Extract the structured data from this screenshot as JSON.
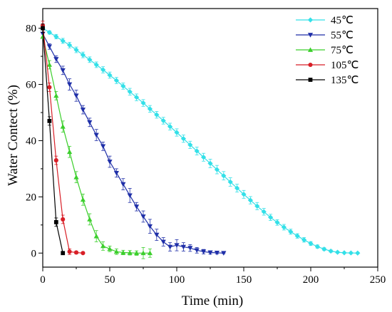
{
  "chart_data": {
    "type": "line",
    "xlabel": "Time (min)",
    "ylabel": "Water Contect (%)",
    "xlim": [
      0,
      250
    ],
    "ylim": [
      -5,
      87
    ],
    "xticks": [
      0,
      50,
      100,
      150,
      200,
      250
    ],
    "yticks": [
      0,
      20,
      40,
      60,
      80
    ],
    "grid": false,
    "legend_position": "top-right",
    "series": [
      {
        "name": "45℃",
        "color": "#33e0e8",
        "marker": "diamond",
        "x": [
          0,
          5,
          10,
          15,
          20,
          25,
          30,
          35,
          40,
          45,
          50,
          55,
          60,
          65,
          70,
          75,
          80,
          85,
          90,
          95,
          100,
          105,
          110,
          115,
          120,
          125,
          130,
          135,
          140,
          145,
          150,
          155,
          160,
          165,
          170,
          175,
          180,
          185,
          190,
          195,
          200,
          205,
          210,
          215,
          220,
          225,
          230,
          235
        ],
        "y": [
          80,
          78.5,
          77,
          75.5,
          74,
          72.3,
          70.5,
          68.8,
          67,
          65.2,
          63.3,
          61.4,
          59.4,
          57.4,
          55.4,
          53.4,
          51.3,
          49.2,
          47.1,
          45,
          42.9,
          40.7,
          38.5,
          36.3,
          34.1,
          31.9,
          29.7,
          27.5,
          25.3,
          23.1,
          20.9,
          18.8,
          16.7,
          14.7,
          12.7,
          10.9,
          9.2,
          7.6,
          6.1,
          4.7,
          3.4,
          2.3,
          1.4,
          0.7,
          0.3,
          0.1,
          0.05,
          0
        ],
        "err": [
          0,
          0.6,
          0.8,
          0.9,
          1,
          1,
          1,
          1,
          1,
          1.1,
          1.1,
          1.1,
          1.1,
          1.2,
          1.2,
          1.2,
          1.2,
          1.2,
          1.2,
          1.2,
          1.3,
          1.3,
          1.3,
          1.4,
          1.4,
          1.5,
          1.5,
          1.5,
          1.5,
          1.4,
          1.4,
          1.3,
          1.3,
          1.2,
          1.1,
          1,
          1,
          0.9,
          0.8,
          0.8,
          0.7,
          0.6,
          0.5,
          0.4,
          0.3,
          0.2,
          0.2,
          0.1
        ]
      },
      {
        "name": "55℃",
        "color": "#1f2fa8",
        "marker": "triangle-down",
        "x": [
          0,
          5,
          10,
          15,
          20,
          25,
          30,
          35,
          40,
          45,
          50,
          55,
          60,
          65,
          70,
          75,
          80,
          85,
          90,
          95,
          100,
          105,
          110,
          115,
          120,
          125,
          130,
          135
        ],
        "y": [
          78,
          73.5,
          69,
          65,
          60,
          56,
          51,
          46.5,
          42,
          38,
          32.5,
          28.5,
          24.5,
          20.5,
          16.5,
          13,
          9.5,
          6.5,
          4,
          2.2,
          2.8,
          2.2,
          1.8,
          1,
          0.5,
          0.2,
          0.1,
          0
        ],
        "err": [
          0,
          1,
          1.2,
          1.5,
          2,
          2,
          1.5,
          1.5,
          2,
          1.5,
          2,
          1.5,
          2,
          2.5,
          1.5,
          2,
          2.5,
          2,
          1.5,
          1.5,
          2,
          1.5,
          1.2,
          1,
          0.8,
          0.6,
          0.4,
          0.2
        ]
      },
      {
        "name": "75℃",
        "color": "#3ccf2c",
        "marker": "triangle-up",
        "x": [
          0,
          5,
          10,
          15,
          20,
          25,
          30,
          35,
          40,
          45,
          50,
          55,
          60,
          65,
          70,
          75,
          80
        ],
        "y": [
          77,
          67,
          56,
          45,
          36,
          27,
          19,
          12,
          6,
          2.5,
          1.5,
          0.5,
          0.2,
          0.1,
          0,
          0,
          0
        ],
        "err": [
          0,
          1.5,
          1.5,
          2,
          2,
          2,
          2,
          2,
          2,
          1.5,
          1,
          1,
          0.8,
          0.8,
          0.8,
          2,
          1.5
        ]
      },
      {
        "name": "105℃",
        "color": "#d81f27",
        "marker": "circle",
        "x": [
          0,
          5,
          10,
          15,
          20,
          25,
          30
        ],
        "y": [
          81,
          59,
          33,
          12,
          0.5,
          0.2,
          0
        ],
        "err": [
          1.5,
          1.5,
          1.5,
          1.5,
          1,
          0.5,
          0.3
        ]
      },
      {
        "name": "135℃",
        "color": "#000000",
        "marker": "square",
        "x": [
          0,
          5,
          10,
          15
        ],
        "y": [
          80,
          47,
          11,
          0
        ],
        "err": [
          1.5,
          1.5,
          1.5,
          0.5
        ]
      }
    ]
  }
}
